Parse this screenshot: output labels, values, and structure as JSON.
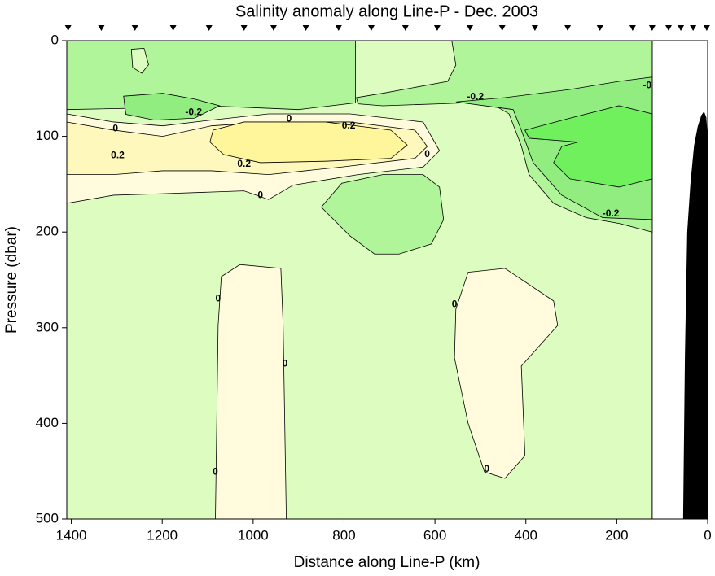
{
  "chart_data": {
    "type": "contour",
    "title": "Salinity anomaly along Line-P - Dec. 2003",
    "xlabel": "Distance along Line-P (km)",
    "ylabel": "Pressure (dbar)",
    "xlim": [
      1410,
      0
    ],
    "ylim": [
      0,
      500
    ],
    "y_reversed": true,
    "xticks": [
      1400,
      1200,
      1000,
      800,
      600,
      400,
      200,
      0
    ],
    "yticks": [
      0,
      100,
      200,
      300,
      400,
      500
    ],
    "stations": [
      1407,
      1334,
      1260,
      1176,
      1097,
      1020,
      955,
      884,
      812,
      740,
      665,
      595,
      523,
      452,
      380,
      308,
      237,
      165,
      122,
      86,
      59,
      32,
      2
    ],
    "regions": [
      {
        "color": "#dcfcc0",
        "x": [
          1410,
          122,
          122,
          1410
        ],
        "y": [
          0,
          0,
          500,
          500
        ]
      },
      {
        "color": "#b0f59a",
        "x": [
          1410,
          775,
          775,
          900,
          1000,
          1100,
          1200,
          1410
        ],
        "y": [
          0,
          0,
          65,
          72,
          70,
          68,
          70,
          72
        ]
      },
      {
        "color": "#dcfcc0",
        "x": [
          1268,
          1240,
          1230,
          1245,
          1265
        ],
        "y": [
          9,
          8,
          25,
          34,
          28
        ]
      },
      {
        "color": "#92ed80",
        "x": [
          1285,
          1199,
          1129,
          1074,
          1129,
          1217,
          1280
        ],
        "y": [
          58,
          55,
          61,
          68,
          81,
          83,
          77
        ]
      },
      {
        "color": "#b0f59a",
        "x": [
          563,
          122,
          122,
          195,
          267,
          339,
          393,
          410,
          437,
          482,
          590,
          715,
          769,
          773,
          715,
          572,
          554
        ],
        "y": [
          0,
          0,
          200,
          191,
          185,
          170,
          140,
          110,
          76.5,
          64,
          66,
          68,
          66,
          59.5,
          55,
          42.5,
          25.5
        ]
      },
      {
        "color": "#92ed80",
        "x": [
          554,
          446,
          303,
          195,
          122,
          122,
          231,
          321,
          384,
          410,
          428
        ],
        "y": [
          64,
          59.5,
          51,
          42.5,
          38,
          187,
          185,
          161.5,
          127.5,
          93.5,
          72
        ]
      },
      {
        "color": "#6ff05c",
        "x": [
          402,
          303,
          195,
          122,
          122,
          195,
          303,
          339,
          321,
          285,
          393
        ],
        "y": [
          93.5,
          81,
          68,
          76.5,
          144.5,
          153,
          144.5,
          127.5,
          110.5,
          106,
          102
        ]
      },
      {
        "color": "#b0f59a",
        "x": [
          850,
          805,
          715,
          626,
          590,
          581,
          608,
          679,
          733,
          787
        ],
        "y": [
          174,
          149,
          140,
          140,
          153,
          187,
          212.5,
          223,
          223,
          204
        ]
      },
      {
        "color": "#fffbdc",
        "x": [
          1410,
          1307,
          1199,
          1092,
          966,
          787,
          626,
          590,
          626,
          769,
          912,
          966,
          1020,
          1199,
          1307,
          1410
        ],
        "y": [
          76.5,
          85,
          89,
          83,
          76.5,
          76.5,
          85,
          115,
          132,
          140,
          151,
          166,
          157,
          160,
          161.5,
          170
        ]
      },
      {
        "color": "#fff8bc",
        "x": [
          1410,
          1307,
          1199,
          1092,
          966,
          787,
          644,
          617,
          644,
          805,
          966,
          1092,
          1199,
          1307,
          1410
        ],
        "y": [
          85,
          93.5,
          100,
          89,
          85,
          85,
          93.5,
          110.5,
          123,
          132,
          140,
          136,
          136,
          140,
          140
        ]
      },
      {
        "color": "#fff59a",
        "x": [
          1088,
          1020,
          841,
          697,
          661,
          697,
          841,
          984,
          1065,
          1095
        ],
        "y": [
          93.5,
          85,
          85,
          93.5,
          109,
          123,
          126,
          127.5,
          119,
          106
        ]
      },
      {
        "color": "#fffbdc",
        "x": [
          1083,
          1077,
          1070,
          1029,
          939,
          934,
          927
        ],
        "y": [
          500,
          297.6,
          246.6,
          234,
          238,
          297.6,
          500
        ]
      },
      {
        "color": "#fffbdc",
        "x": [
          554,
          527,
          446,
          339,
          330,
          410,
          402,
          446,
          491,
          527,
          557
        ],
        "y": [
          280.6,
          242,
          238,
          272,
          297.6,
          340,
          433.7,
          457.5,
          450.7,
          400,
          331.6
        ]
      }
    ],
    "bathymetry": {
      "color": "#000000",
      "x": [
        54,
        50,
        45,
        38,
        30,
        22,
        14,
        8,
        3,
        0,
        0
      ],
      "y": [
        500,
        330,
        200,
        150,
        110,
        90,
        78,
        74,
        80,
        100,
        500
      ]
    },
    "contour_labels": [
      {
        "text": "-0.2",
        "x": 1131,
        "y": 75
      },
      {
        "text": "0",
        "x": 1303,
        "y": 92
      },
      {
        "text": "0.2",
        "x": 1298,
        "y": 120
      },
      {
        "text": "0",
        "x": 921,
        "y": 82
      },
      {
        "text": "0.2",
        "x": 790,
        "y": 89
      },
      {
        "text": "0.2",
        "x": 1020,
        "y": 129
      },
      {
        "text": "0",
        "x": 984,
        "y": 162
      },
      {
        "text": "0",
        "x": 617,
        "y": 119
      },
      {
        "text": "-0.2",
        "x": 511,
        "y": 59
      },
      {
        "text": "-0",
        "x": 133,
        "y": 47
      },
      {
        "text": "-0.2",
        "x": 213,
        "y": 181
      },
      {
        "text": "0",
        "x": 1077,
        "y": 270
      },
      {
        "text": "0",
        "x": 930,
        "y": 338
      },
      {
        "text": "0",
        "x": 1083,
        "y": 451
      },
      {
        "text": "0",
        "x": 557,
        "y": 276
      },
      {
        "text": "0",
        "x": 486,
        "y": 448
      }
    ]
  }
}
